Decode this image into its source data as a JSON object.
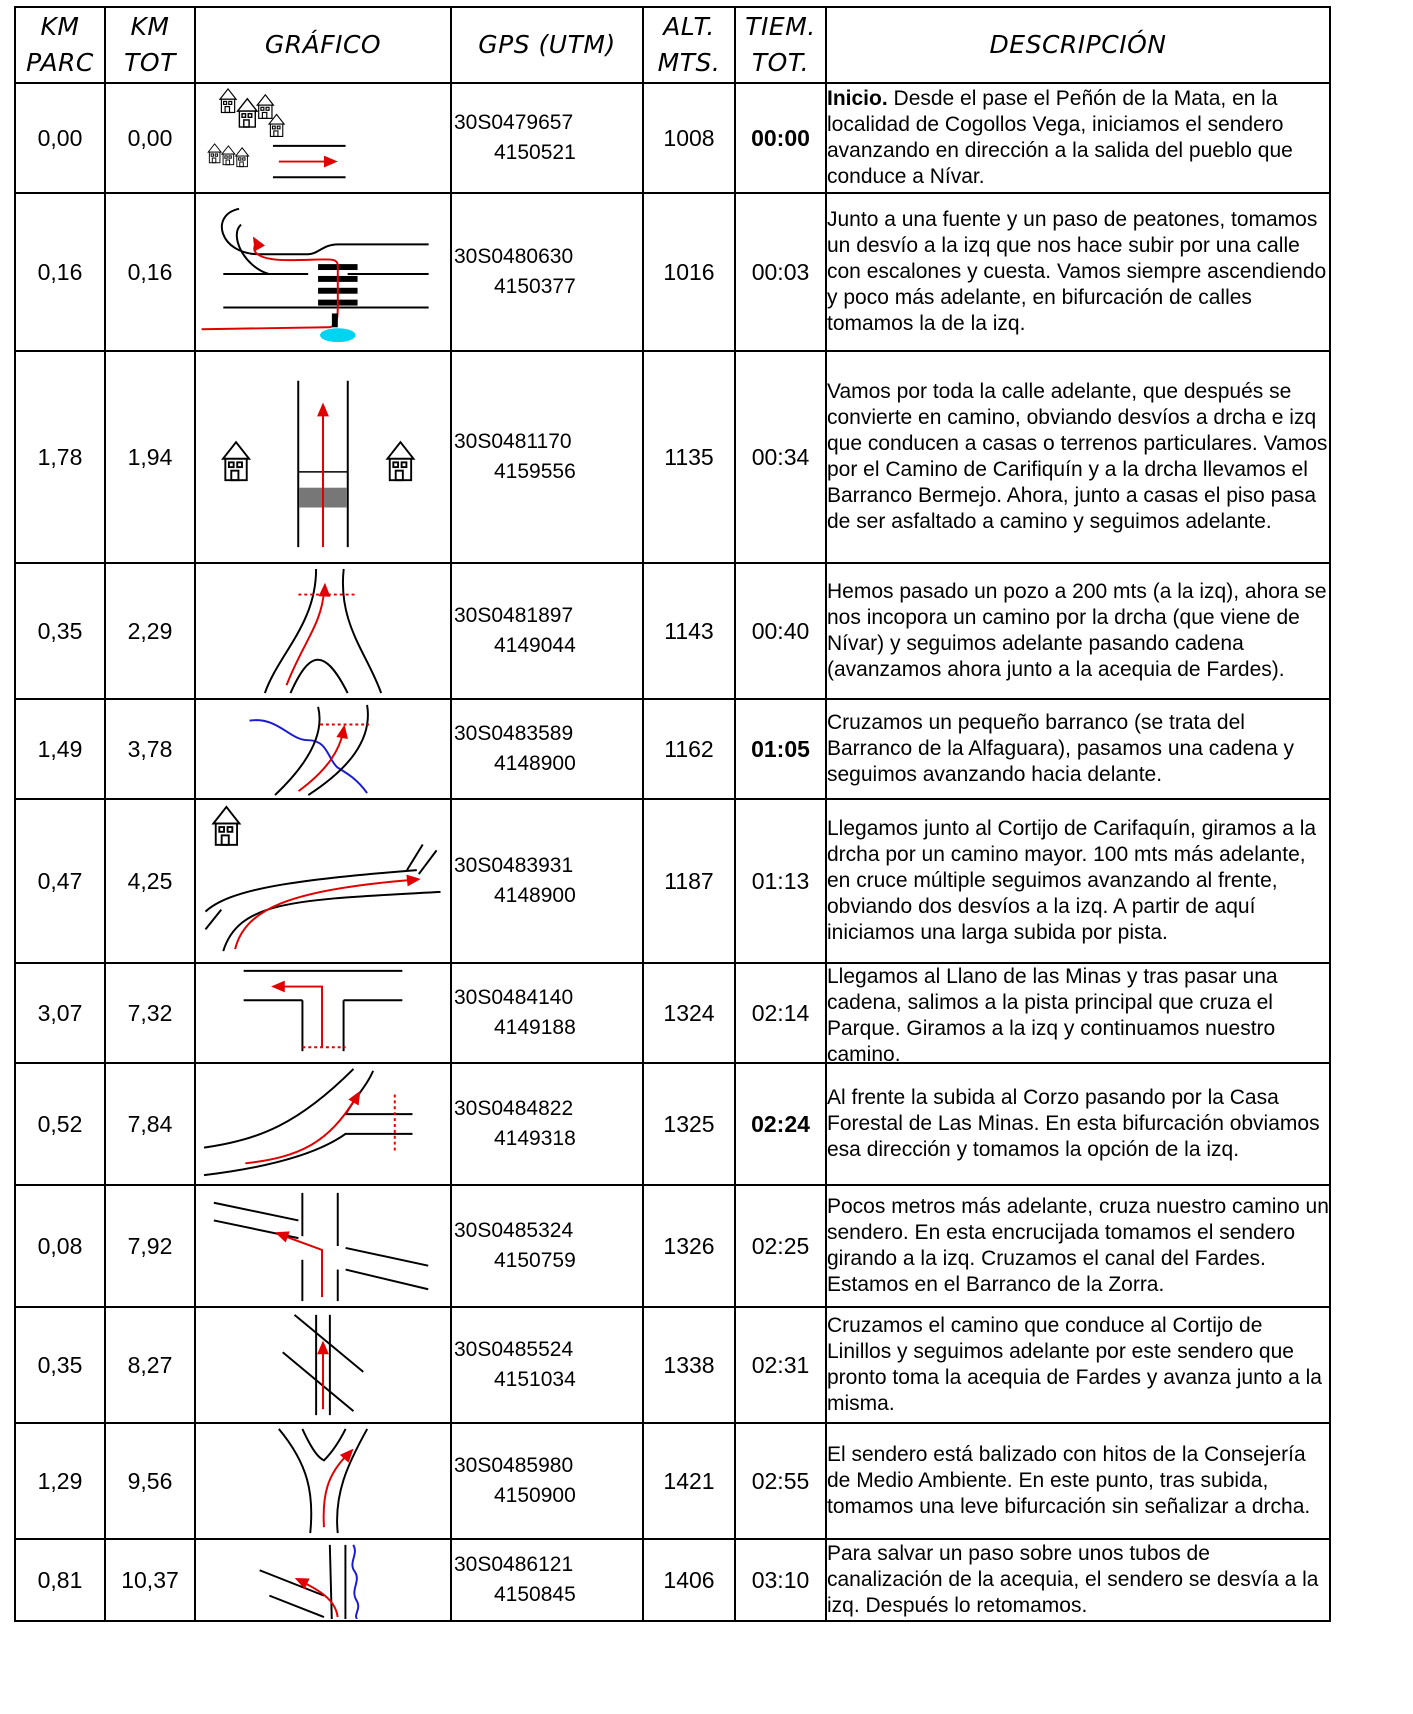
{
  "headers": {
    "km_parc": [
      "KM",
      "PARC"
    ],
    "km_tot": [
      "KM",
      "TOT"
    ],
    "grafico": "GRÁFICO",
    "gps": "GPS (UTM)",
    "alt": [
      "ALT.",
      "MTS."
    ],
    "tiem": [
      "TIEM.",
      "TOT."
    ],
    "descripcion": "DESCRIPCIÓN"
  },
  "rows": [
    {
      "km_parc": "0,00",
      "km_tot": "0,00",
      "gps1": "30S0479657",
      "gps2": "4150521",
      "alt": "1008",
      "time": "00:00",
      "time_bold": true,
      "desc_lead": "Inicio.",
      "desc": " Desde el pase el Peñón de la Mata, en la localidad de Cogollos Vega, iniciamos el sendero avanzando en dirección a la salida del pueblo que conduce a Nívar.",
      "graphic": "village-arrow-icon"
    },
    {
      "km_parc": "0,16",
      "km_tot": "0,16",
      "gps1": "30S0480630",
      "gps2": "4150377",
      "alt": "1016",
      "time": "00:03",
      "time_bold": false,
      "desc_lead": "",
      "desc": "Junto a una fuente y un paso de peatones, tomamos un desvío a la izq que nos hace subir por una calle con escalones y cuesta. Vamos siempre ascendiendo y poco más adelante, en bifurcación de calles tomamos la de la izq.",
      "graphic": "crosswalk-turn-icon"
    },
    {
      "km_parc": "1,78",
      "km_tot": "1,94",
      "gps1": "30S0481170",
      "gps2": "4159556",
      "alt": "1135",
      "time": "00:34",
      "time_bold": false,
      "desc_lead": "",
      "desc": "Vamos por toda la calle adelante, que después se convierte en camino, obviando desvíos a drcha e izq que conducen a casas o terrenos particulares. Vamos por el Camino de Carifiquín y a la drcha llevamos el Barranco Bermejo. Ahora, junto a casas el piso pasa de ser asfaltado a camino y seguimos adelante.",
      "graphic": "houses-road-icon"
    },
    {
      "km_parc": "0,35",
      "km_tot": "2,29",
      "gps1": "30S0481897",
      "gps2": "4149044",
      "alt": "1143",
      "time": "00:40",
      "time_bold": false,
      "desc_lead": "",
      "desc": "Hemos pasado un pozo a 200 mts (a la izq), ahora se nos incopora un camino por la drcha (que viene de Nívar) y seguimos adelante pasando cadena (avanzamos ahora junto a la acequia de Fardes).",
      "graphic": "fork-chain-icon"
    },
    {
      "km_parc": "1,49",
      "km_tot": "3,78",
      "gps1": "30S0483589",
      "gps2": "4148900",
      "alt": "1162",
      "time": "01:05",
      "time_bold": true,
      "desc_lead": "",
      "desc": "Cruzamos un pequeño barranco (se trata del Barranco de la Alfaguara), pasamos una cadena y seguimos avanzando hacia delante.",
      "graphic": "stream-crossing-icon"
    },
    {
      "km_parc": "0,47",
      "km_tot": "4,25",
      "gps1": "30S0483931",
      "gps2": "4148900",
      "alt": "1187",
      "time": "01:13",
      "time_bold": false,
      "desc_lead": "",
      "desc": "Llegamos junto al Cortijo de Carifaquín, giramos a la drcha por un camino mayor. 100 mts más adelante, en cruce múltiple seguimos avanzando al frente, obviando dos desvíos a la izq. A partir de aquí iniciamos una larga subida por pista.",
      "graphic": "cortijo-junction-icon"
    },
    {
      "km_parc": "3,07",
      "km_tot": "7,32",
      "gps1": "30S0484140",
      "gps2": "4149188",
      "alt": "1324",
      "time": "02:14",
      "time_bold": false,
      "desc_lead": "",
      "desc": "Llegamos al Llano de las Minas y tras pasar una cadena, salimos a la pista principal que cruza el Parque. Giramos a la izq y continuamos nuestro camino.",
      "graphic": "t-junction-left-icon"
    },
    {
      "km_parc": "0,52",
      "km_tot": "7,84",
      "gps1": "30S0484822",
      "gps2": "4149318",
      "alt": "1325",
      "time": "02:24",
      "time_bold": true,
      "desc_lead": "",
      "desc": "Al frente la subida al Corzo pasando por la Casa Forestal de Las Minas. En esta bifurcación obviamos esa dirección y tomamos la opción de la izq.",
      "graphic": "bifurcation-left-icon"
    },
    {
      "km_parc": "0,08",
      "km_tot": "7,92",
      "gps1": "30S0485324",
      "gps2": "4150759",
      "alt": "1326",
      "time": "02:25",
      "time_bold": false,
      "desc_lead": "",
      "desc": "Pocos metros más adelante, cruza nuestro camino un sendero. En esta encrucijada tomamos el sendero girando a la izq. Cruzamos el canal del Fardes. Estamos en el Barranco de la Zorra.",
      "graphic": "crossroads-left-icon"
    },
    {
      "km_parc": "0,35",
      "km_tot": "8,27",
      "gps1": "30S0485524",
      "gps2": "4151034",
      "alt": "1338",
      "time": "02:31",
      "time_bold": false,
      "desc_lead": "",
      "desc": "Cruzamos el camino que conduce al Cortijo de Linillos y seguimos adelante por este sendero que pronto toma la acequia de Fardes y avanza junto a la misma.",
      "graphic": "crossing-straight-icon"
    },
    {
      "km_parc": "1,29",
      "km_tot": "9,56",
      "gps1": "30S0485980",
      "gps2": "4150900",
      "alt": "1421",
      "time": "02:55",
      "time_bold": false,
      "desc_lead": "",
      "desc": "El sendero está balizado con hitos de la Consejería de Medio Ambiente. En este punto, tras subida, tomamos una leve bifurcación sin señalizar a drcha.",
      "graphic": "y-fork-right-icon"
    },
    {
      "km_parc": "0,81",
      "km_tot": "10,37",
      "gps1": "30S0486121",
      "gps2": "4150845",
      "alt": "1406",
      "time": "03:10",
      "time_bold": false,
      "desc_lead": "",
      "desc": "Para salvar un paso sobre unos tubos de canalización de la acequia, el sendero se desvía a la izq. Después lo retomamos.",
      "graphic": "detour-left-icon"
    }
  ]
}
